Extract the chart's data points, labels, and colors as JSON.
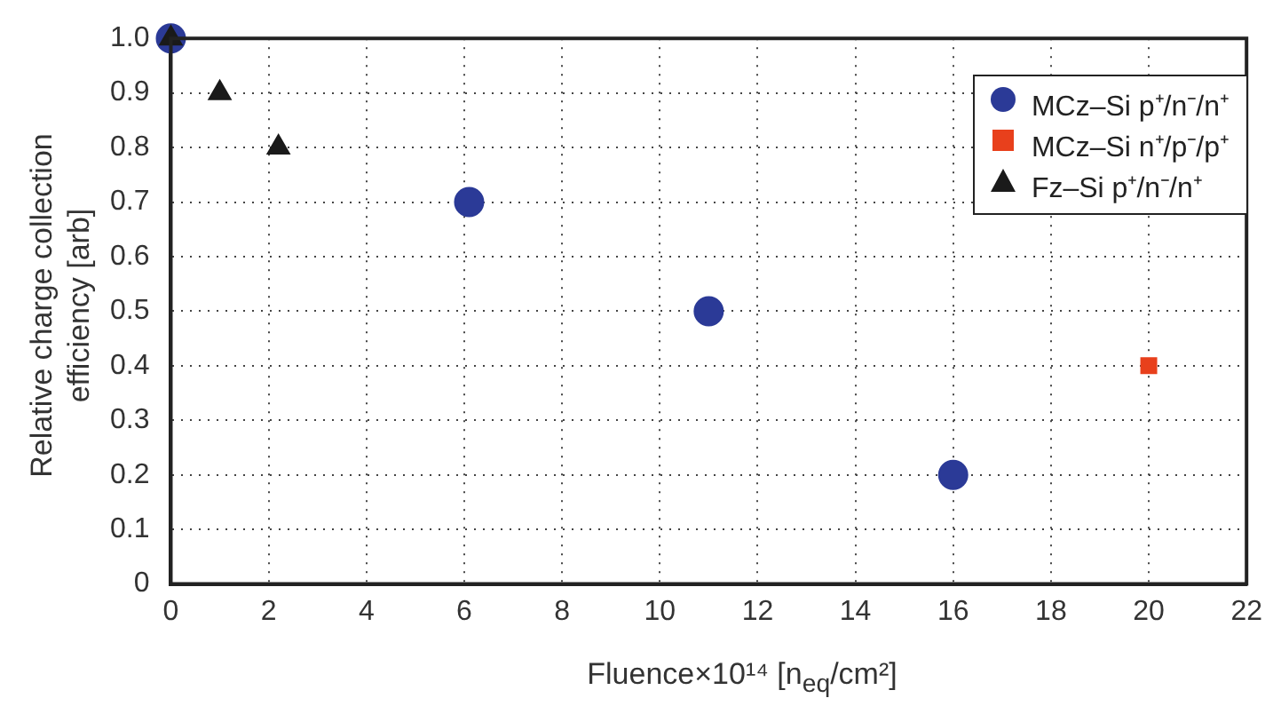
{
  "chart_data": {
    "type": "scatter",
    "xlabel": "Fluence×10¹⁴ [n$_{eq}$/cm²]",
    "ylabel": "Relative charge collection\nefficiency [arb]",
    "series": [
      {
        "name": "MCz–Si p⁺/n⁻/n⁺",
        "color": "#2b3a97",
        "marker": "circle",
        "x": [
          0,
          6.1,
          11,
          16
        ],
        "values": [
          1.0,
          0.7,
          0.5,
          0.2
        ]
      },
      {
        "name": "MCz–Si n⁺/p⁻/p⁺",
        "color": "#e8401c",
        "marker": "square",
        "x": [
          20
        ],
        "values": [
          0.4
        ]
      },
      {
        "name": "Fz–Si p⁺/n⁻/n⁺",
        "color": "#1a1a1a",
        "marker": "triangle",
        "x": [
          0,
          1,
          2.2
        ],
        "values": [
          1.0,
          0.9,
          0.8
        ]
      }
    ],
    "xlim": [
      0,
      22
    ],
    "xticks": [
      0,
      2,
      4,
      6,
      8,
      10,
      12,
      14,
      16,
      18,
      20,
      22
    ],
    "ylim": [
      0,
      1.0
    ],
    "yticks": [
      0,
      {
        "value": 0.1,
        "label": "0.1"
      },
      {
        "value": 0.2,
        "label": "0.2"
      },
      {
        "value": 0.3,
        "label": "0.3"
      },
      {
        "value": 0.4,
        "label": "0.4"
      },
      {
        "value": 0.5,
        "label": "0.5"
      },
      {
        "value": 0.6,
        "label": "0.6"
      },
      {
        "value": 0.7,
        "label": "0.7"
      },
      {
        "value": 0.8,
        "label": "0.8"
      },
      {
        "value": 0.9,
        "label": "0.9"
      },
      {
        "value": 1.0,
        "label": "1.0"
      }
    ],
    "grid": true,
    "legend": "top right"
  }
}
